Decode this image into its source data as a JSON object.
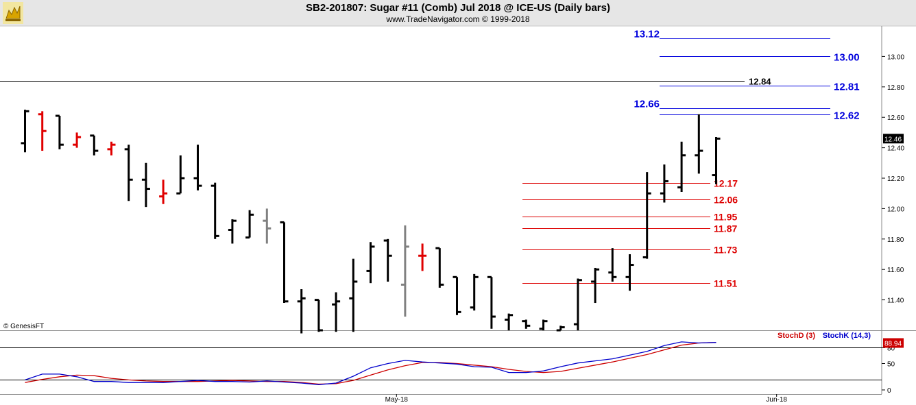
{
  "header": {
    "title": "SB2-201807:  Sugar #11 (Comb) Jul 2018 @ ICE-US  (Daily bars)",
    "subtitle": "www.TradeNavigator.com © 1999-2018",
    "copyright": "© GenesisFT"
  },
  "colors": {
    "up_bar": "#000000",
    "down_bar": "#e00000",
    "neutral_bar": "#808080",
    "target_line": "#0000dd",
    "support_line": "#dd0000",
    "reference_line": "#000000",
    "stoch_k": "#0000cc",
    "stoch_d": "#cc0000",
    "last_price_bg": "#000000",
    "last_stoch_bg": "#cc0000"
  },
  "chart_data": [
    {
      "type": "ohlc",
      "ylim": [
        11.2,
        13.2
      ],
      "y_ticks": [
        "11.40",
        "11.60",
        "11.80",
        "12.00",
        "12.20",
        "12.40",
        "12.60",
        "12.80",
        "13.00"
      ],
      "x_ticks": [
        {
          "label": "May-18",
          "bar_index": 21.5
        },
        {
          "label": "Jun-18",
          "bar_index": 43.5
        }
      ],
      "last_price": "12.46",
      "bars": [
        {
          "o": 12.43,
          "h": 12.65,
          "l": 12.37,
          "c": 12.64,
          "color": "up"
        },
        {
          "o": 12.62,
          "h": 12.64,
          "l": 12.38,
          "c": 12.51,
          "color": "down"
        },
        {
          "o": 12.61,
          "h": 12.61,
          "l": 12.39,
          "c": 12.42,
          "color": "up"
        },
        {
          "o": 12.42,
          "h": 12.5,
          "l": 12.4,
          "c": 12.47,
          "color": "down"
        },
        {
          "o": 12.48,
          "h": 12.48,
          "l": 12.35,
          "c": 12.38,
          "color": "up"
        },
        {
          "o": 12.39,
          "h": 12.44,
          "l": 12.35,
          "c": 12.42,
          "color": "down"
        },
        {
          "o": 12.39,
          "h": 12.42,
          "l": 12.05,
          "c": 12.19,
          "color": "up"
        },
        {
          "o": 12.19,
          "h": 12.3,
          "l": 12.01,
          "c": 12.13,
          "color": "up"
        },
        {
          "o": 12.08,
          "h": 12.19,
          "l": 12.03,
          "c": 12.1,
          "color": "down"
        },
        {
          "o": 12.1,
          "h": 12.35,
          "l": 12.1,
          "c": 12.2,
          "color": "up"
        },
        {
          "o": 12.2,
          "h": 12.42,
          "l": 12.12,
          "c": 12.15,
          "color": "up"
        },
        {
          "o": 12.15,
          "h": 12.17,
          "l": 11.8,
          "c": 11.82,
          "color": "up"
        },
        {
          "o": 11.86,
          "h": 11.93,
          "l": 11.77,
          "c": 11.92,
          "color": "up"
        },
        {
          "o": 11.81,
          "h": 11.99,
          "l": 11.81,
          "c": 11.96,
          "color": "up"
        },
        {
          "o": 11.92,
          "h": 12.0,
          "l": 11.77,
          "c": 11.87,
          "color": "neutral"
        },
        {
          "o": 11.91,
          "h": 11.91,
          "l": 11.38,
          "c": 11.39,
          "color": "up"
        },
        {
          "o": 11.39,
          "h": 11.47,
          "l": 11.18,
          "c": 11.41,
          "color": "up"
        },
        {
          "o": 11.4,
          "h": 11.4,
          "l": 11.19,
          "c": 11.2,
          "color": "up"
        },
        {
          "o": 11.37,
          "h": 11.45,
          "l": 11.19,
          "c": 11.39,
          "color": "up"
        },
        {
          "o": 11.41,
          "h": 11.67,
          "l": 11.19,
          "c": 11.52,
          "color": "up"
        },
        {
          "o": 11.59,
          "h": 11.78,
          "l": 11.51,
          "c": 11.75,
          "color": "up"
        },
        {
          "o": 11.79,
          "h": 11.8,
          "l": 11.52,
          "c": 11.69,
          "color": "up"
        },
        {
          "o": 11.5,
          "h": 11.89,
          "l": 11.29,
          "c": 11.75,
          "color": "neutral"
        },
        {
          "o": 11.69,
          "h": 11.77,
          "l": 11.59,
          "c": 11.69,
          "color": "down"
        },
        {
          "o": 11.74,
          "h": 11.74,
          "l": 11.48,
          "c": 11.5,
          "color": "up"
        },
        {
          "o": 11.55,
          "h": 11.55,
          "l": 11.3,
          "c": 11.32,
          "color": "up"
        },
        {
          "o": 11.35,
          "h": 11.57,
          "l": 11.33,
          "c": 11.55,
          "color": "up"
        },
        {
          "o": 11.55,
          "h": 11.55,
          "l": 11.21,
          "c": 11.29,
          "color": "up"
        },
        {
          "o": 11.27,
          "h": 11.31,
          "l": 11.2,
          "c": 11.3,
          "color": "up"
        },
        {
          "o": 11.26,
          "h": 11.27,
          "l": 11.21,
          "c": 11.23,
          "color": "up"
        },
        {
          "o": 11.21,
          "h": 11.27,
          "l": 11.2,
          "c": 11.26,
          "color": "up"
        },
        {
          "o": 11.2,
          "h": 11.23,
          "l": 11.2,
          "c": 11.22,
          "color": "up"
        },
        {
          "o": 11.24,
          "h": 11.54,
          "l": 11.2,
          "c": 11.53,
          "color": "up"
        },
        {
          "o": 11.52,
          "h": 11.61,
          "l": 11.38,
          "c": 11.6,
          "color": "up"
        },
        {
          "o": 11.58,
          "h": 11.74,
          "l": 11.52,
          "c": 11.55,
          "color": "up"
        },
        {
          "o": 11.55,
          "h": 11.7,
          "l": 11.46,
          "c": 11.63,
          "color": "up"
        },
        {
          "o": 11.68,
          "h": 12.24,
          "l": 11.67,
          "c": 12.1,
          "color": "up"
        },
        {
          "o": 12.1,
          "h": 12.29,
          "l": 12.04,
          "c": 12.18,
          "color": "up"
        },
        {
          "o": 12.14,
          "h": 12.44,
          "l": 12.11,
          "c": 12.35,
          "color": "up"
        },
        {
          "o": 12.35,
          "h": 12.62,
          "l": 12.23,
          "c": 12.38,
          "color": "up"
        },
        {
          "o": 12.22,
          "h": 12.47,
          "l": 12.16,
          "c": 12.46,
          "color": "up"
        }
      ],
      "levels": [
        {
          "price": 13.12,
          "label": "13.12",
          "kind": "target",
          "label_side": "left"
        },
        {
          "price": 13.0,
          "label": "13.00",
          "kind": "target",
          "label_side": "right"
        },
        {
          "price": 12.84,
          "label": "12.84",
          "kind": "reference",
          "label_side": "right"
        },
        {
          "price": 12.81,
          "label": "12.81",
          "kind": "target",
          "label_side": "right"
        },
        {
          "price": 12.66,
          "label": "12.66",
          "kind": "target",
          "label_side": "left"
        },
        {
          "price": 12.62,
          "label": "12.62",
          "kind": "target",
          "label_side": "right"
        },
        {
          "price": 12.17,
          "label": "12.17",
          "kind": "support",
          "label_side": "right"
        },
        {
          "price": 12.06,
          "label": "12.06",
          "kind": "support",
          "label_side": "right"
        },
        {
          "price": 11.95,
          "label": "11.95",
          "kind": "support",
          "label_side": "right"
        },
        {
          "price": 11.87,
          "label": "11.87",
          "kind": "support",
          "label_side": "right"
        },
        {
          "price": 11.73,
          "label": "11.73",
          "kind": "support",
          "label_side": "right"
        },
        {
          "price": 11.51,
          "label": "11.51",
          "kind": "support",
          "label_side": "right"
        }
      ]
    },
    {
      "type": "line",
      "ylim": [
        0,
        100
      ],
      "y_ticks": [
        "0",
        "50",
        "80"
      ],
      "guide_lines": [
        80,
        20
      ],
      "last_value": "88.94",
      "series": [
        {
          "name": "StochD (3)",
          "color": "#cc0000",
          "values": [
            14,
            20,
            25,
            28,
            27,
            22,
            19,
            17,
            16,
            16,
            16,
            17,
            18,
            17,
            16,
            16,
            14,
            11,
            12,
            18,
            28,
            38,
            46,
            52,
            52,
            50,
            47,
            44,
            39,
            35,
            33,
            35,
            41,
            47,
            53,
            60,
            67,
            76,
            85,
            89,
            90
          ]
        },
        {
          "name": "StochK (14,3)",
          "color": "#0000cc",
          "values": [
            19,
            30,
            30,
            25,
            16,
            16,
            14,
            14,
            14,
            16,
            18,
            16,
            16,
            15,
            17,
            15,
            13,
            10,
            13,
            26,
            42,
            50,
            56,
            53,
            51,
            49,
            44,
            43,
            33,
            33,
            36,
            44,
            51,
            55,
            59,
            66,
            73,
            84,
            91,
            89,
            90
          ]
        }
      ]
    }
  ]
}
